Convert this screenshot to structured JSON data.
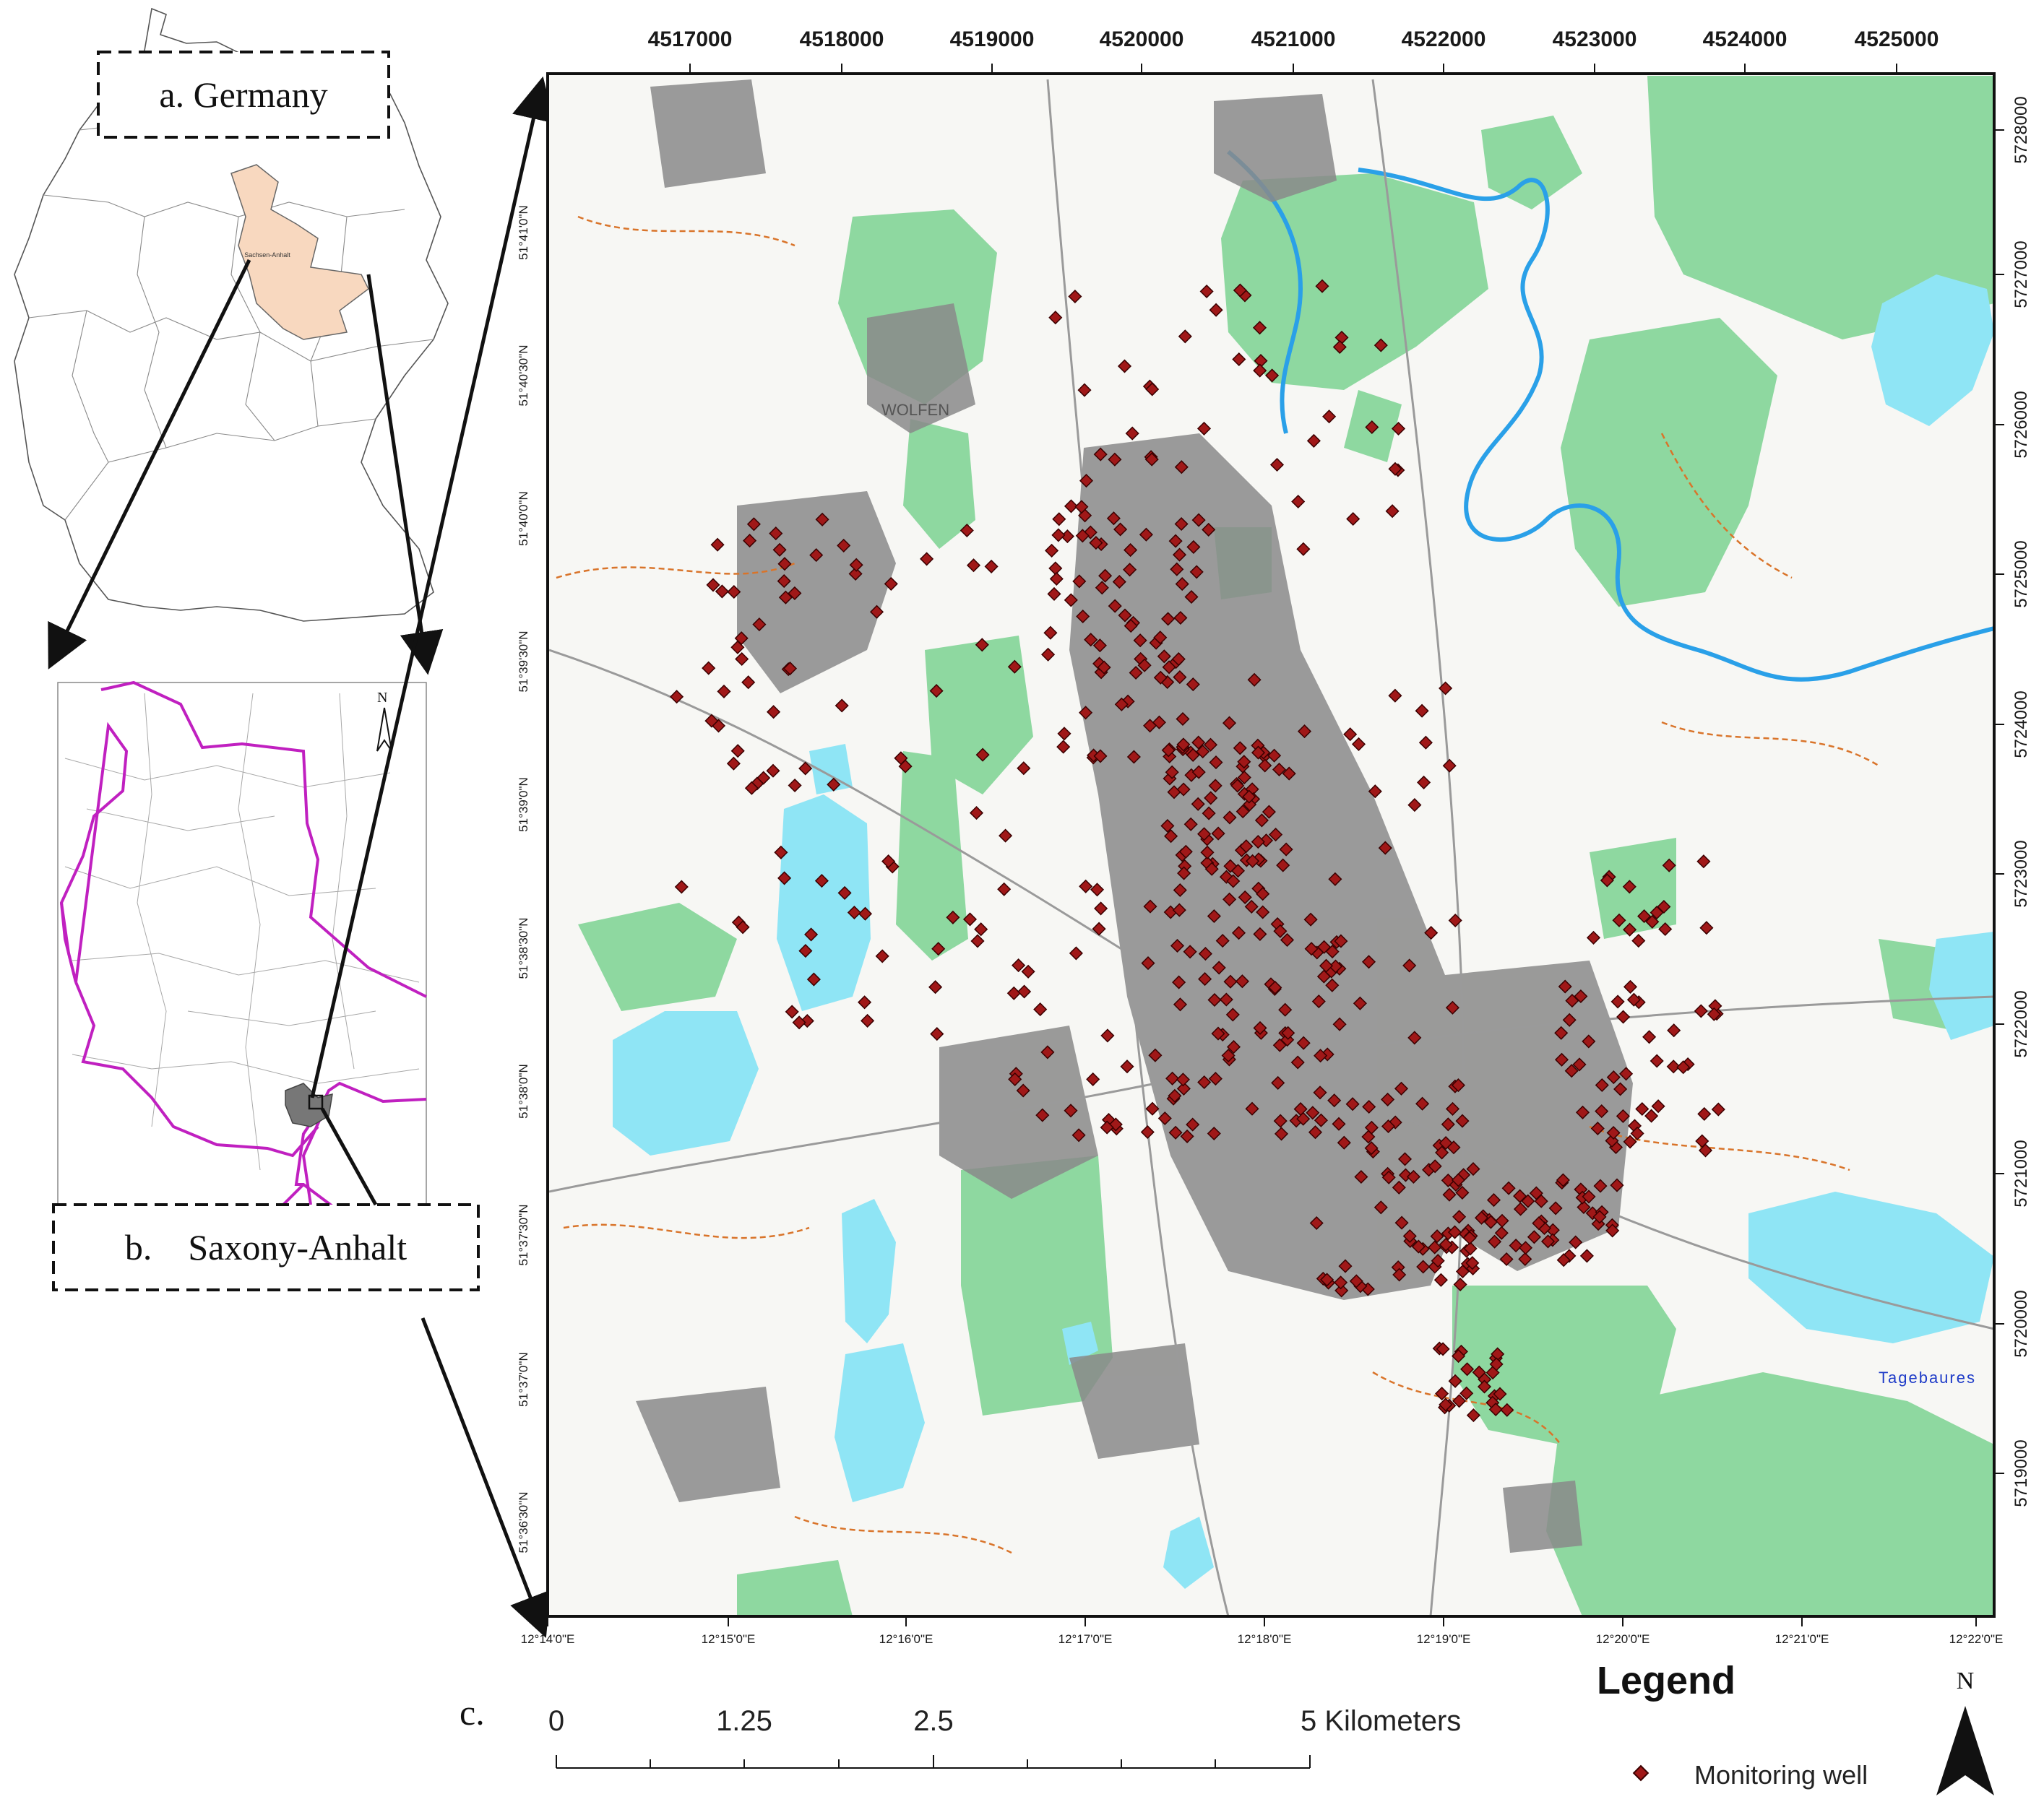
{
  "insets": {
    "germany": {
      "label": "a. Germany",
      "state_label": "Sachsen-Anhalt"
    },
    "saxony": {
      "label": "b.    Saxony-Anhalt",
      "north_letter": "N"
    }
  },
  "main_map": {
    "panel_label": "c.",
    "x_grid_ticks": [
      "4517000",
      "4518000",
      "4519000",
      "4520000",
      "4521000",
      "4522000",
      "4523000",
      "4524000",
      "4525000"
    ],
    "y_grid_ticks": [
      "5728000",
      "5727000",
      "5726000",
      "5725000",
      "5724000",
      "5723000",
      "5722000",
      "5721000",
      "5720000",
      "5719000"
    ],
    "lon_ticks": [
      "12°14'0\"E",
      "12°15'0\"E",
      "12°16'0\"E",
      "12°17'0\"E",
      "12°18'0\"E",
      "12°19'0\"E",
      "12°20'0\"E",
      "12°21'0\"E",
      "12°22'0\"E"
    ],
    "lat_ticks": [
      "51°41'0\"N",
      "51°40'30\"N",
      "51°40'0\"N",
      "51°39'30\"N",
      "51°39'0\"N",
      "51°38'30\"N",
      "51°38'0\"N",
      "51°37'30\"N",
      "51°37'0\"N",
      "51°36'30\"N"
    ],
    "place_labels": [
      "WOLFEN",
      "Tagebaures"
    ]
  },
  "scale_bar": {
    "labels": [
      "0",
      "1.25",
      "2.5",
      "5 Kilometers"
    ]
  },
  "legend": {
    "title": "Legend",
    "item_label": "Monitoring well",
    "marker_color": "#a01818"
  },
  "north_arrow": {
    "letter": "N"
  },
  "colors": {
    "forest": "#8ed8a0",
    "water": "#8fe5f5",
    "urban": "#8a8a8a",
    "river": "#2aa0e8",
    "contour": "#d9742a",
    "boundary": "#c020c0",
    "inset_fill": "#f8d8bf"
  }
}
